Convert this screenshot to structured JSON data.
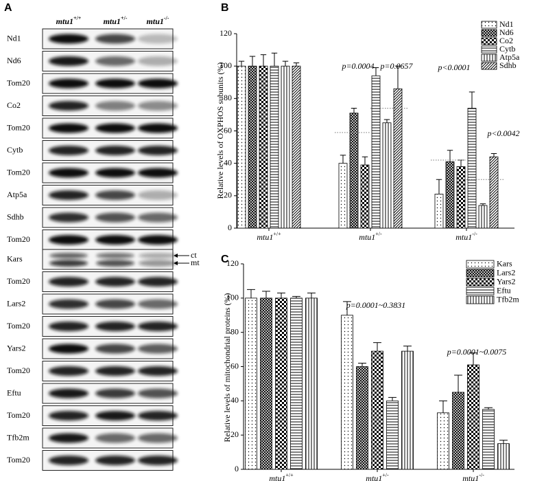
{
  "panel_a": {
    "label": "A",
    "columns": [
      {
        "name": "mtu1",
        "sup": "+/+"
      },
      {
        "name": "mtu1",
        "sup": "+/-"
      },
      {
        "name": "mtu1",
        "sup": "-/-"
      }
    ],
    "rows": [
      "Nd1",
      "Nd6",
      "Tom20",
      "Co2",
      "Tom20",
      "Cytb",
      "Tom20",
      "Atp5a",
      "Sdhb",
      "Tom20",
      "Kars",
      "Tom20",
      "Lars2",
      "Tom20",
      "Yars2",
      "Tom20",
      "Eftu",
      "Tom20",
      "Tfb2m",
      "Tom20"
    ],
    "band_labels": [
      "ct",
      "mt"
    ]
  },
  "chart_data": [
    {
      "type": "bar",
      "panel": "B",
      "ylabel": "Relative levels of  OXPHOS subunits (%)",
      "categories": [
        {
          "name": "mtu1",
          "sup": "+/+"
        },
        {
          "name": "mtu1",
          "sup": "+/-"
        },
        {
          "name": "mtu1",
          "sup": "-/-"
        }
      ],
      "series": [
        {
          "name": "Nd1",
          "pattern": "dots",
          "color": "#000000",
          "values": [
            100,
            40,
            21
          ],
          "errors": [
            3,
            5,
            9
          ]
        },
        {
          "name": "Nd6",
          "pattern": "crosshatch",
          "color": "#000000",
          "values": [
            100,
            71,
            41
          ],
          "errors": [
            6,
            3,
            7
          ]
        },
        {
          "name": "Co2",
          "pattern": "checker",
          "color": "#000000",
          "values": [
            100,
            39,
            38
          ],
          "errors": [
            7,
            5,
            4
          ]
        },
        {
          "name": "Cytb",
          "pattern": "hlines",
          "color": "#000000",
          "values": [
            100,
            94,
            74
          ],
          "errors": [
            8,
            5,
            10
          ]
        },
        {
          "name": "Atp5a",
          "pattern": "vlines",
          "color": "#000000",
          "values": [
            100,
            65,
            14
          ],
          "errors": [
            3,
            2,
            1
          ]
        },
        {
          "name": "Sdhb",
          "pattern": "diag",
          "color": "#000000",
          "values": [
            100,
            86,
            44
          ],
          "errors": [
            2,
            14,
            2
          ]
        }
      ],
      "reference_lines": [
        [],
        [
          59,
          74
        ],
        [
          42,
          30
        ]
      ],
      "annotations": [
        "p=0.0004",
        "p=0.0657",
        "p<0.0001",
        "p<0.0042"
      ],
      "ylim": [
        0,
        120
      ],
      "yticks": [
        0,
        20,
        40,
        60,
        80,
        100,
        120
      ],
      "legend": "upper right"
    },
    {
      "type": "bar",
      "panel": "C",
      "ylabel": "Relative levels of mitochondrial proteins (%)",
      "categories": [
        {
          "name": "mtu1",
          "sup": "+/+"
        },
        {
          "name": "mtu1",
          "sup": "+/-"
        },
        {
          "name": "mtu1",
          "sup": "-/-"
        }
      ],
      "series": [
        {
          "name": "Kars",
          "pattern": "dots",
          "color": "#000000",
          "values": [
            100,
            90,
            33
          ],
          "errors": [
            5,
            8,
            7
          ]
        },
        {
          "name": "Lars2",
          "pattern": "crosshatch",
          "color": "#000000",
          "values": [
            100,
            60,
            45
          ],
          "errors": [
            4,
            2,
            10
          ]
        },
        {
          "name": "Yars2",
          "pattern": "checker",
          "color": "#000000",
          "values": [
            100,
            69,
            61
          ],
          "errors": [
            3,
            5,
            7
          ]
        },
        {
          "name": "Eftu",
          "pattern": "hlines",
          "color": "#000000",
          "values": [
            100,
            40,
            35
          ],
          "errors": [
            1,
            2,
            1
          ]
        },
        {
          "name": "Tfb2m",
          "pattern": "vlines",
          "color": "#000000",
          "values": [
            100,
            69,
            15
          ],
          "errors": [
            3,
            3,
            2
          ]
        }
      ],
      "annotations": [
        "p=0.0001~0.3831",
        "p=0.0001~0.0075"
      ],
      "ylim": [
        0,
        120
      ],
      "yticks": [
        0,
        20,
        40,
        60,
        80,
        100,
        120
      ],
      "legend": "upper right"
    }
  ]
}
